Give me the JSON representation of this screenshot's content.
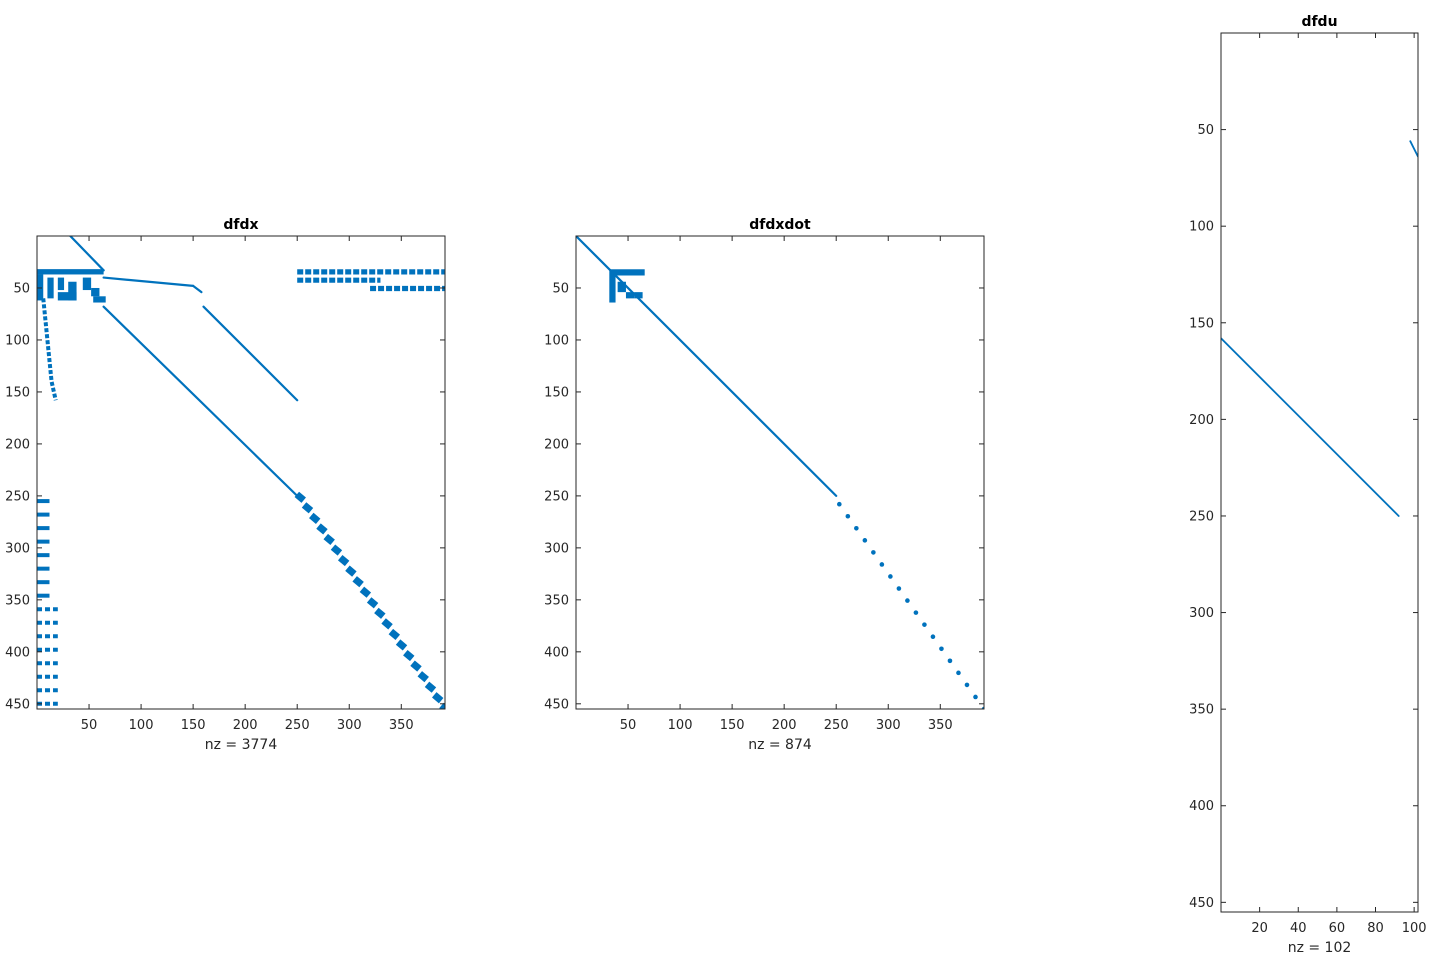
{
  "colors": {
    "marker": "#0072BD",
    "axis": "#262626",
    "background": "#ffffff"
  },
  "chart_data": [
    {
      "type": "scatter",
      "title": "dfdx",
      "xlabel": "nz = 3774",
      "ylabel": "",
      "xlim": [
        0,
        392
      ],
      "ylim": [
        455,
        0
      ],
      "y_reversed": true,
      "xticks": [
        50,
        100,
        150,
        200,
        250,
        300,
        350
      ],
      "yticks": [
        50,
        100,
        150,
        200,
        250,
        300,
        350,
        400,
        450
      ],
      "series": [
        {
          "lines": [
            [
              [
                32,
                0
              ],
              [
                64,
                33
              ]
            ],
            [
              [
                64,
                68
              ],
              [
                250,
                250
              ]
            ],
            [
              [
                160,
                68
              ],
              [
                250,
                158
              ]
            ],
            [
              [
                0,
                33
              ],
              [
                64,
                33
              ]
            ],
            [
              [
                64,
                40
              ],
              [
                150,
                48
              ]
            ],
            [
              [
                150,
                48
              ],
              [
                158,
                54
              ]
            ]
          ],
          "blocks": [
            [
              0,
              32,
              64,
              37
            ],
            [
              0,
              37,
              6,
              62
            ],
            [
              10,
              40,
              16,
              60
            ],
            [
              20,
              40,
              26,
              52
            ],
            [
              20,
              54,
              38,
              62
            ],
            [
              30,
              44,
              38,
              62
            ],
            [
              44,
              40,
              52,
              52
            ],
            [
              52,
              50,
              60,
              58
            ],
            [
              54,
              58,
              66,
              64
            ]
          ],
          "bands": [
            [
              250,
              32,
              392,
              37
            ],
            [
              250,
              40,
              330,
              45
            ],
            [
              320,
              48,
              392,
              53
            ]
          ],
          "vertical_curve": [
            [
              6,
              60
            ],
            [
              8,
              80
            ],
            [
              10,
              100
            ],
            [
              12,
              120
            ],
            [
              14,
              140
            ],
            [
              18,
              158
            ]
          ],
          "left_dashes_a": {
            "x_range": [
              0,
              12
            ],
            "y_values": [
              255,
              268,
              281,
              294,
              307,
              320,
              333,
              346
            ]
          },
          "left_dashes_b": {
            "x_range": [
              0,
              20
            ],
            "y_values": [
              359,
              372,
              385,
              398,
              411,
              424,
              437,
              450
            ]
          },
          "diag_dots": {
            "start": [
              253,
              252
            ],
            "end": [
              392,
              455
            ],
            "count": 21
          }
        }
      ]
    },
    {
      "type": "scatter",
      "title": "dfdxdot",
      "xlabel": "nz = 874",
      "ylabel": "",
      "xlim": [
        0,
        392
      ],
      "ylim": [
        455,
        0
      ],
      "y_reversed": true,
      "xticks": [
        50,
        100,
        150,
        200,
        250,
        300,
        350
      ],
      "yticks": [
        50,
        100,
        150,
        200,
        250,
        300,
        350,
        400,
        450
      ],
      "series": [
        {
          "lines": [
            [
              [
                0,
                0
              ],
              [
                250,
                250
              ]
            ]
          ],
          "blocks": [
            [
              32,
              32,
              66,
              38
            ],
            [
              32,
              38,
              38,
              64
            ],
            [
              40,
              44,
              48,
              54
            ],
            [
              48,
              54,
              56,
              60
            ],
            [
              56,
              54,
              64,
              60
            ]
          ],
          "diag_dots": {
            "start": [
              253,
              258
            ],
            "end": [
              392,
              455
            ],
            "count": 18
          }
        }
      ]
    },
    {
      "type": "scatter",
      "title": "dfdu",
      "xlabel": "nz = 102",
      "ylabel": "",
      "xlim": [
        0,
        102
      ],
      "ylim": [
        455,
        0
      ],
      "y_reversed": true,
      "xticks": [
        20,
        40,
        60,
        80,
        100
      ],
      "yticks": [
        50,
        100,
        150,
        200,
        250,
        300,
        350,
        400,
        450
      ],
      "series": [
        {
          "lines": [
            [
              [
                0,
                158
              ],
              [
                92,
                250
              ]
            ],
            [
              [
                98,
                56
              ],
              [
                102,
                64
              ]
            ]
          ]
        }
      ]
    }
  ]
}
